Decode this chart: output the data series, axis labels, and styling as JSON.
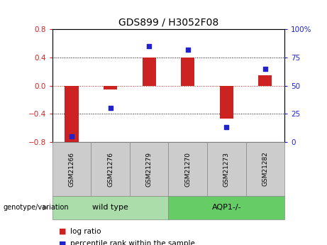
{
  "title": "GDS899 / H3052F08",
  "samples": [
    "GSM21266",
    "GSM21276",
    "GSM21279",
    "GSM21270",
    "GSM21273",
    "GSM21282"
  ],
  "log_ratio": [
    -0.8,
    -0.05,
    0.4,
    0.4,
    -0.47,
    0.15
  ],
  "percentile_rank": [
    5,
    30,
    85,
    82,
    13,
    65
  ],
  "ylim_left": [
    -0.8,
    0.8
  ],
  "ylim_right": [
    0,
    100
  ],
  "yticks_left": [
    -0.8,
    -0.4,
    0,
    0.4,
    0.8
  ],
  "yticks_right": [
    0,
    25,
    50,
    75,
    100
  ],
  "ytick_labels_right": [
    "0",
    "25",
    "50",
    "75",
    "100%"
  ],
  "bar_color": "#cc2222",
  "dot_color": "#2222cc",
  "zero_line_color": "#cc2222",
  "grid_line_color": "#000000",
  "groups": [
    {
      "label": "wild type",
      "indices": [
        0,
        1,
        2
      ],
      "color": "#aaddaa"
    },
    {
      "label": "AQP1-/-",
      "indices": [
        3,
        4,
        5
      ],
      "color": "#66cc66"
    }
  ],
  "genotype_label": "genotype/variation",
  "legend_log_ratio": "log ratio",
  "legend_percentile": "percentile rank within the sample",
  "bar_width": 0.35,
  "sample_box_color": "#cccccc",
  "figure_width": 4.61,
  "figure_height": 3.45,
  "dpi": 100
}
